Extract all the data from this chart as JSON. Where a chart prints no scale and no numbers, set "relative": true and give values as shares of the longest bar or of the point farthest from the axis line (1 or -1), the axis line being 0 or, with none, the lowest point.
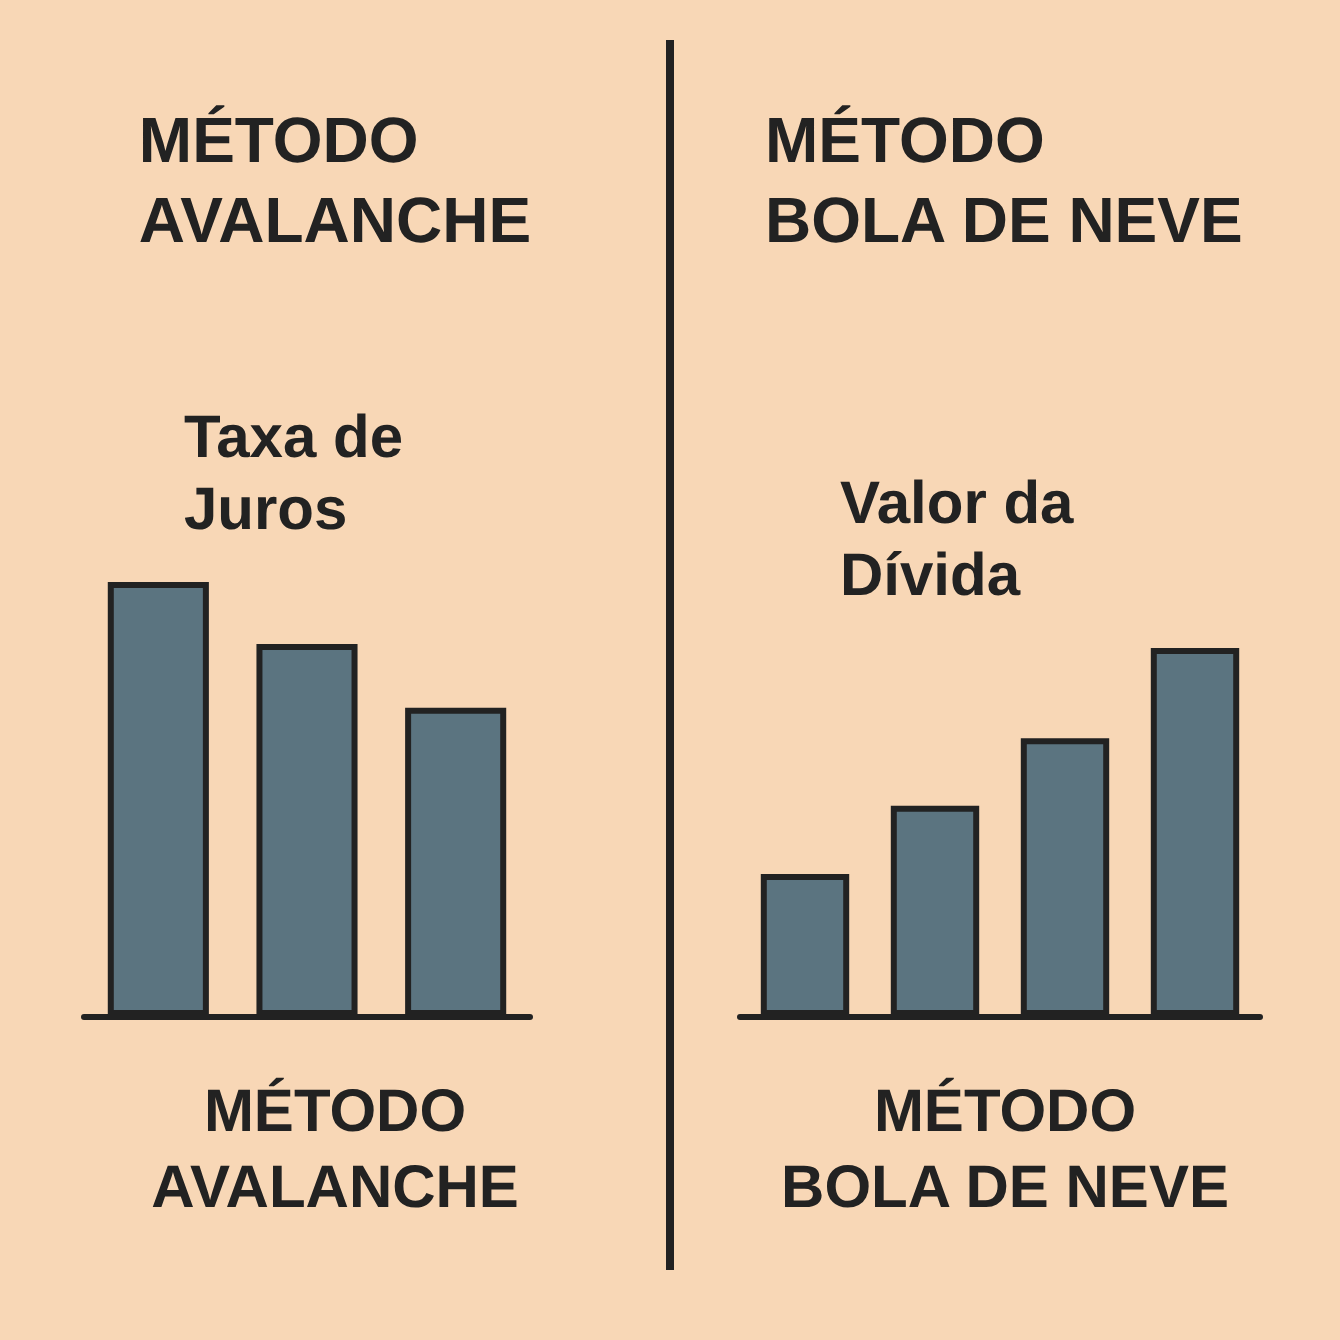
{
  "chart_data": [
    {
      "type": "bar",
      "title": "MÉTODO AVALANCHE",
      "ylabel": "Taxa de Juros",
      "xlabel": "MÉTODO AVALANCHE",
      "categories": [
        null,
        null,
        null
      ],
      "relative": true,
      "values": [
        1,
        0.857,
        0.71
      ],
      "color": "#5b7480"
    },
    {
      "type": "bar",
      "title": "MÉTODO BOLA DE NEVE",
      "ylabel": "Valor da Dívida",
      "xlabel": "MÉTODO BOLA DE NEVE",
      "categories": [
        null,
        null,
        null,
        null
      ],
      "relative": true,
      "values": [
        0.386,
        0.571,
        0.755,
        1
      ],
      "color": "#5b7480"
    }
  ]
}
